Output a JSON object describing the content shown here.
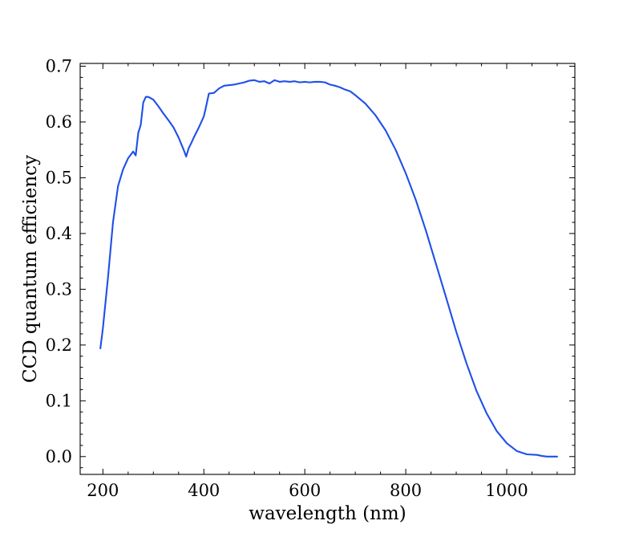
{
  "chart_data": {
    "type": "line",
    "title": "",
    "xlabel": "wavelength (nm)",
    "ylabel": "CCD quantum efficiency",
    "xlim": [
      155,
      1135
    ],
    "ylim": [
      -0.032,
      0.705
    ],
    "x_major_ticks": [
      200,
      400,
      600,
      800,
      1000
    ],
    "x_tick_labels": [
      "200",
      "400",
      "600",
      "800",
      "1000"
    ],
    "x_minor_step": 50,
    "y_major_ticks": [
      0.0,
      0.1,
      0.2,
      0.3,
      0.4,
      0.5,
      0.6,
      0.7
    ],
    "y_tick_labels": [
      "0.0",
      "0.1",
      "0.2",
      "0.3",
      "0.4",
      "0.5",
      "0.6",
      "0.7"
    ],
    "y_minor_step": 0.02,
    "grid": false,
    "tick_direction": "in",
    "ticks_all_sides": true,
    "series": [
      {
        "color": "#1f4fe8",
        "x": [
          195,
          200,
          210,
          220,
          230,
          240,
          250,
          260,
          265,
          270,
          275,
          280,
          285,
          290,
          300,
          310,
          320,
          330,
          340,
          350,
          360,
          365,
          370,
          375,
          380,
          390,
          400,
          405,
          410,
          420,
          430,
          440,
          450,
          460,
          470,
          480,
          490,
          500,
          510,
          520,
          530,
          540,
          550,
          560,
          570,
          580,
          590,
          600,
          610,
          620,
          630,
          640,
          650,
          660,
          670,
          680,
          690,
          700,
          720,
          740,
          760,
          780,
          800,
          820,
          840,
          860,
          880,
          900,
          920,
          940,
          960,
          980,
          1000,
          1020,
          1040,
          1060,
          1070,
          1080,
          1100
        ],
        "y": [
          0.194,
          0.23,
          0.32,
          0.42,
          0.485,
          0.515,
          0.535,
          0.547,
          0.54,
          0.58,
          0.595,
          0.635,
          0.645,
          0.645,
          0.64,
          0.628,
          0.615,
          0.603,
          0.59,
          0.572,
          0.55,
          0.538,
          0.553,
          0.562,
          0.572,
          0.59,
          0.61,
          0.63,
          0.651,
          0.652,
          0.66,
          0.665,
          0.666,
          0.667,
          0.669,
          0.671,
          0.674,
          0.675,
          0.672,
          0.673,
          0.669,
          0.675,
          0.672,
          0.673,
          0.672,
          0.673,
          0.671,
          0.672,
          0.671,
          0.672,
          0.672,
          0.671,
          0.667,
          0.665,
          0.662,
          0.658,
          0.655,
          0.648,
          0.633,
          0.612,
          0.585,
          0.55,
          0.508,
          0.46,
          0.405,
          0.345,
          0.285,
          0.224,
          0.168,
          0.118,
          0.078,
          0.046,
          0.024,
          0.01,
          0.004,
          0.003,
          0.001,
          0.0,
          0.0
        ]
      }
    ]
  }
}
